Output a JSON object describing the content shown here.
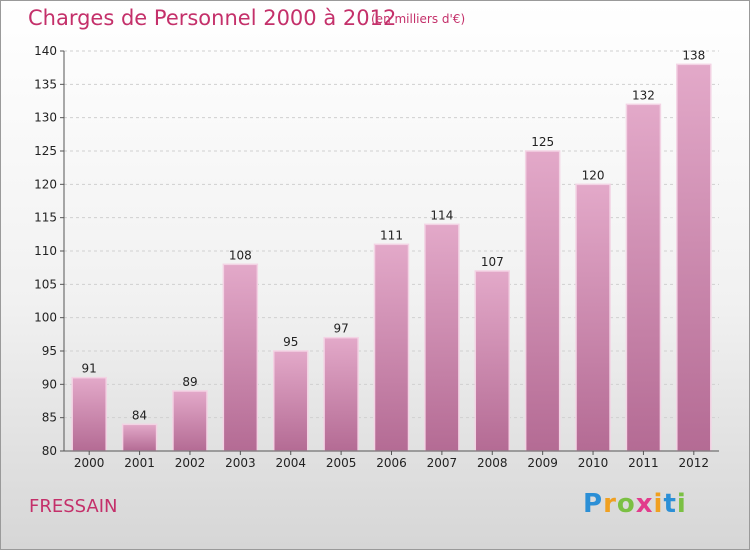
{
  "chart_data": {
    "type": "bar",
    "title": "Charges de Personnel 2000 à 2012",
    "subtitle": "(en milliers d'€)",
    "categories": [
      "2000",
      "2001",
      "2002",
      "2003",
      "2004",
      "2005",
      "2006",
      "2007",
      "2008",
      "2009",
      "2010",
      "2011",
      "2012"
    ],
    "values": [
      91,
      84,
      89,
      108,
      95,
      97,
      111,
      114,
      107,
      125,
      120,
      132,
      138
    ],
    "xlabel": "",
    "ylabel": "",
    "ylim": [
      80,
      140
    ],
    "yticks": [
      80,
      85,
      90,
      95,
      100,
      105,
      110,
      115,
      120,
      125,
      130,
      135,
      140
    ],
    "grid": true,
    "bar_color": "#c96f9f"
  },
  "footer": {
    "place": "FRESSAIN",
    "logo": [
      "P",
      "r",
      "o",
      "x",
      "i",
      "t",
      "i"
    ]
  }
}
